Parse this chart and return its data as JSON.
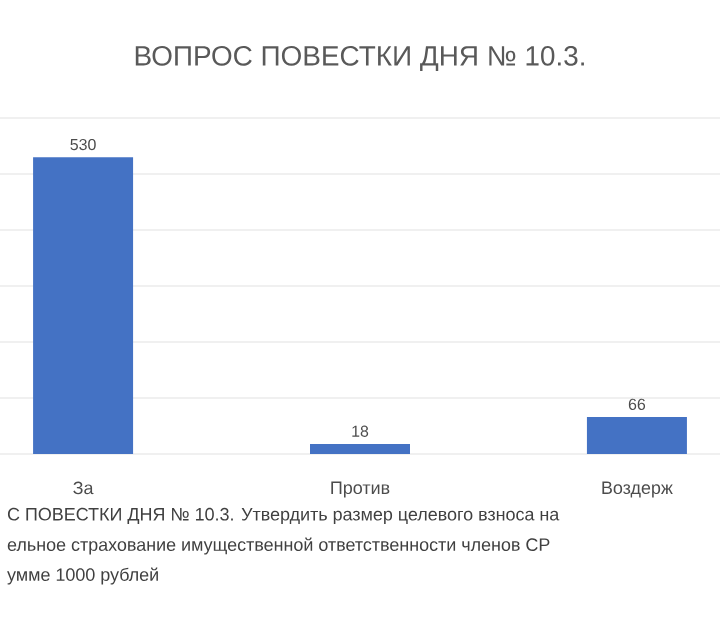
{
  "chart_data": {
    "type": "bar",
    "title": "ВОПРОС ПОВЕСТКИ ДНЯ № 10.3.",
    "categories": [
      "За",
      "Против",
      "Воздерж"
    ],
    "values": [
      530,
      18,
      66
    ],
    "color": "#4472c4",
    "data_labels": true,
    "ylim": [
      0,
      600
    ],
    "yticks": [
      {
        "value": 0,
        "label": null
      },
      {
        "value": 100,
        "label": null
      },
      {
        "value": 200,
        "label": null
      },
      {
        "value": 300,
        "label": null
      },
      {
        "value": 400,
        "label": null
      },
      {
        "value": 500,
        "label": null
      },
      {
        "value": 600,
        "label": null
      }
    ],
    "grid": "y",
    "tick_labels": "x",
    "annotations": [
      "С ПОВЕСТКИ ДНЯ № 10.3. Утвердить размер целевого взноса на",
      "ельное страхование имущественной ответственности членов СР",
      "умме 1000 рублей"
    ]
  }
}
